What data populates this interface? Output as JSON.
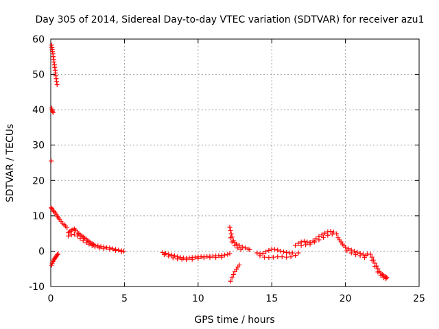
{
  "chart_data": {
    "type": "scatter",
    "title": "Day 305 of 2014, Sidereal Day-to-day VTEC variation (SDTVAR) for receiver azu1",
    "xlabel": "GPS time / hours",
    "ylabel": "SDTVAR / TECUs",
    "xlim": [
      0,
      25
    ],
    "ylim": [
      -10,
      60
    ],
    "xticks": [
      0,
      5,
      10,
      15,
      20,
      25
    ],
    "yticks": [
      -10,
      0,
      10,
      20,
      30,
      40,
      50,
      60
    ],
    "xtick_labels": [
      "0",
      "5",
      "10",
      "15",
      "20",
      "25"
    ],
    "ytick_labels": [
      "-10",
      "0",
      "10",
      "20",
      "30",
      "40",
      "50",
      "60"
    ],
    "grid": true,
    "marker": "plus",
    "color": "#ff0000",
    "series": [
      {
        "name": "SDTVAR",
        "points": [
          [
            0.05,
            58.3
          ],
          [
            0.08,
            57.6
          ],
          [
            0.1,
            57.0
          ],
          [
            0.12,
            56.4
          ],
          [
            0.15,
            55.8
          ],
          [
            0.17,
            55.0
          ],
          [
            0.2,
            54.2
          ],
          [
            0.22,
            53.5
          ],
          [
            0.25,
            52.7
          ],
          [
            0.27,
            52.0
          ],
          [
            0.3,
            51.2
          ],
          [
            0.32,
            50.4
          ],
          [
            0.35,
            49.6
          ],
          [
            0.37,
            48.8
          ],
          [
            0.4,
            48.0
          ],
          [
            0.43,
            47.1
          ],
          [
            0.05,
            40.5
          ],
          [
            0.08,
            40.0
          ],
          [
            0.12,
            39.6
          ],
          [
            0.16,
            39.2
          ],
          [
            0.03,
            25.5
          ],
          [
            0.02,
            12.3
          ],
          [
            0.08,
            12.0
          ],
          [
            0.15,
            11.6
          ],
          [
            0.22,
            11.2
          ],
          [
            0.3,
            10.8
          ],
          [
            0.38,
            10.3
          ],
          [
            0.45,
            9.9
          ],
          [
            0.52,
            9.4
          ],
          [
            0.6,
            9.0
          ],
          [
            0.7,
            8.4
          ],
          [
            0.8,
            7.9
          ],
          [
            0.9,
            7.5
          ],
          [
            1.0,
            7.1
          ],
          [
            1.1,
            6.6
          ],
          [
            1.2,
            5.2
          ],
          [
            1.3,
            5.6
          ],
          [
            1.4,
            5.9
          ],
          [
            1.5,
            6.1
          ],
          [
            1.6,
            6.3
          ],
          [
            1.7,
            5.9
          ],
          [
            1.8,
            5.4
          ],
          [
            1.9,
            5.0
          ],
          [
            2.0,
            4.6
          ],
          [
            2.1,
            4.3
          ],
          [
            2.2,
            4.0
          ],
          [
            2.3,
            3.7
          ],
          [
            2.4,
            3.4
          ],
          [
            2.5,
            3.0
          ],
          [
            2.6,
            2.7
          ],
          [
            2.7,
            2.4
          ],
          [
            2.8,
            2.1
          ],
          [
            2.9,
            1.9
          ],
          [
            3.0,
            1.7
          ],
          [
            3.2,
            1.5
          ],
          [
            3.4,
            1.3
          ],
          [
            3.6,
            1.2
          ],
          [
            3.8,
            1.0
          ],
          [
            4.0,
            0.9
          ],
          [
            4.2,
            0.7
          ],
          [
            4.4,
            0.5
          ],
          [
            4.6,
            0.3
          ],
          [
            4.8,
            0.1
          ],
          [
            4.95,
            0.0
          ],
          [
            1.2,
            4.3
          ],
          [
            1.4,
            4.6
          ],
          [
            1.6,
            4.8
          ],
          [
            1.8,
            4.3
          ],
          [
            2.0,
            3.6
          ],
          [
            2.2,
            3.0
          ],
          [
            2.4,
            2.4
          ],
          [
            2.6,
            2.0
          ],
          [
            2.8,
            1.6
          ],
          [
            3.0,
            1.2
          ],
          [
            3.3,
            0.9
          ],
          [
            3.6,
            0.7
          ],
          [
            4.0,
            0.5
          ],
          [
            4.4,
            0.2
          ],
          [
            4.8,
            -0.2
          ],
          [
            0.05,
            -4.0
          ],
          [
            0.1,
            -3.4
          ],
          [
            0.15,
            -2.9
          ],
          [
            0.2,
            -2.5
          ],
          [
            0.25,
            -2.2
          ],
          [
            0.3,
            -1.9
          ],
          [
            0.35,
            -1.6
          ],
          [
            0.4,
            -1.3
          ],
          [
            0.45,
            -1.0
          ],
          [
            0.5,
            -0.8
          ],
          [
            7.6,
            -0.4
          ],
          [
            7.8,
            -0.6
          ],
          [
            8.0,
            -0.9
          ],
          [
            8.2,
            -1.1
          ],
          [
            8.4,
            -1.3
          ],
          [
            8.6,
            -1.6
          ],
          [
            8.8,
            -1.8
          ],
          [
            9.0,
            -1.9
          ],
          [
            9.2,
            -2.0
          ],
          [
            9.4,
            -1.9
          ],
          [
            9.6,
            -1.8
          ],
          [
            9.8,
            -1.7
          ],
          [
            10.0,
            -1.6
          ],
          [
            10.2,
            -1.6
          ],
          [
            10.4,
            -1.5
          ],
          [
            10.6,
            -1.5
          ],
          [
            10.8,
            -1.4
          ],
          [
            11.0,
            -1.4
          ],
          [
            11.2,
            -1.3
          ],
          [
            11.4,
            -1.3
          ],
          [
            11.6,
            -1.2
          ],
          [
            11.8,
            -1.1
          ],
          [
            12.0,
            -0.9
          ],
          [
            12.15,
            -0.7
          ],
          [
            7.7,
            -1.0
          ],
          [
            8.0,
            -1.4
          ],
          [
            8.3,
            -1.9
          ],
          [
            8.6,
            -2.2
          ],
          [
            8.9,
            -2.3
          ],
          [
            9.2,
            -2.4
          ],
          [
            9.6,
            -2.3
          ],
          [
            10.0,
            -2.1
          ],
          [
            10.4,
            -1.9
          ],
          [
            10.8,
            -1.8
          ],
          [
            11.2,
            -1.8
          ],
          [
            11.6,
            -1.7
          ],
          [
            12.15,
            6.8
          ],
          [
            12.2,
            5.8
          ],
          [
            12.25,
            4.9
          ],
          [
            12.3,
            4.0
          ],
          [
            12.4,
            3.0
          ],
          [
            12.5,
            2.4
          ],
          [
            12.6,
            2.0
          ],
          [
            12.8,
            1.6
          ],
          [
            13.0,
            1.2
          ],
          [
            13.2,
            0.9
          ],
          [
            13.4,
            0.6
          ],
          [
            13.5,
            0.4
          ],
          [
            12.2,
            3.8
          ],
          [
            12.3,
            2.6
          ],
          [
            12.5,
            1.6
          ],
          [
            12.7,
            0.9
          ],
          [
            12.9,
            0.4
          ],
          [
            12.2,
            -8.5
          ],
          [
            12.3,
            -7.5
          ],
          [
            12.4,
            -6.6
          ],
          [
            12.5,
            -5.8
          ],
          [
            12.6,
            -5.1
          ],
          [
            12.7,
            -4.5
          ],
          [
            12.8,
            -3.9
          ],
          [
            14.0,
            -0.5
          ],
          [
            14.2,
            -0.8
          ],
          [
            14.4,
            -0.6
          ],
          [
            14.6,
            -0.2
          ],
          [
            14.8,
            0.2
          ],
          [
            15.0,
            0.6
          ],
          [
            15.2,
            0.5
          ],
          [
            15.4,
            0.3
          ],
          [
            15.6,
            0.0
          ],
          [
            15.8,
            -0.2
          ],
          [
            16.0,
            -0.4
          ],
          [
            16.2,
            -0.5
          ],
          [
            16.4,
            -0.5
          ],
          [
            14.2,
            -1.3
          ],
          [
            14.5,
            -1.7
          ],
          [
            14.8,
            -1.8
          ],
          [
            15.1,
            -1.7
          ],
          [
            15.4,
            -1.6
          ],
          [
            15.7,
            -1.6
          ],
          [
            16.0,
            -1.7
          ],
          [
            16.3,
            -1.6
          ],
          [
            16.6,
            -1.2
          ],
          [
            16.8,
            -0.5
          ],
          [
            16.6,
            1.6
          ],
          [
            16.8,
            2.2
          ],
          [
            17.0,
            2.6
          ],
          [
            17.2,
            2.8
          ],
          [
            17.4,
            2.6
          ],
          [
            17.6,
            2.5
          ],
          [
            17.8,
            2.9
          ],
          [
            18.0,
            3.5
          ],
          [
            18.2,
            4.1
          ],
          [
            18.4,
            4.6
          ],
          [
            18.6,
            5.1
          ],
          [
            18.8,
            5.5
          ],
          [
            19.0,
            5.6
          ],
          [
            19.2,
            5.4
          ],
          [
            19.4,
            4.9
          ],
          [
            17.0,
            1.6
          ],
          [
            17.3,
            1.8
          ],
          [
            17.6,
            2.0
          ],
          [
            17.9,
            2.6
          ],
          [
            18.2,
            3.2
          ],
          [
            18.5,
            3.9
          ],
          [
            18.8,
            4.5
          ],
          [
            19.1,
            4.8
          ],
          [
            19.5,
            3.8
          ],
          [
            19.6,
            3.2
          ],
          [
            19.7,
            2.6
          ],
          [
            19.8,
            2.0
          ],
          [
            19.9,
            1.5
          ],
          [
            20.0,
            1.1
          ],
          [
            20.2,
            0.7
          ],
          [
            20.4,
            0.3
          ],
          [
            20.6,
            0.0
          ],
          [
            20.8,
            -0.3
          ],
          [
            21.0,
            -0.6
          ],
          [
            21.2,
            -0.9
          ],
          [
            21.4,
            -1.2
          ],
          [
            20.1,
            0.1
          ],
          [
            20.4,
            -0.5
          ],
          [
            20.7,
            -1.0
          ],
          [
            21.0,
            -1.3
          ],
          [
            21.3,
            -1.8
          ],
          [
            21.5,
            -0.8
          ],
          [
            21.7,
            -0.9
          ],
          [
            21.8,
            -1.7
          ],
          [
            21.9,
            -2.5
          ],
          [
            22.0,
            -3.4
          ],
          [
            22.1,
            -4.2
          ],
          [
            22.2,
            -5.0
          ],
          [
            22.3,
            -5.7
          ],
          [
            22.4,
            -6.2
          ],
          [
            22.5,
            -6.6
          ],
          [
            22.6,
            -6.9
          ],
          [
            22.7,
            -7.2
          ],
          [
            22.8,
            -7.4
          ],
          [
            21.8,
            -2.6
          ],
          [
            22.0,
            -4.3
          ],
          [
            22.2,
            -5.9
          ],
          [
            22.4,
            -6.9
          ],
          [
            22.6,
            -7.5
          ],
          [
            22.75,
            -7.8
          ]
        ]
      }
    ]
  }
}
